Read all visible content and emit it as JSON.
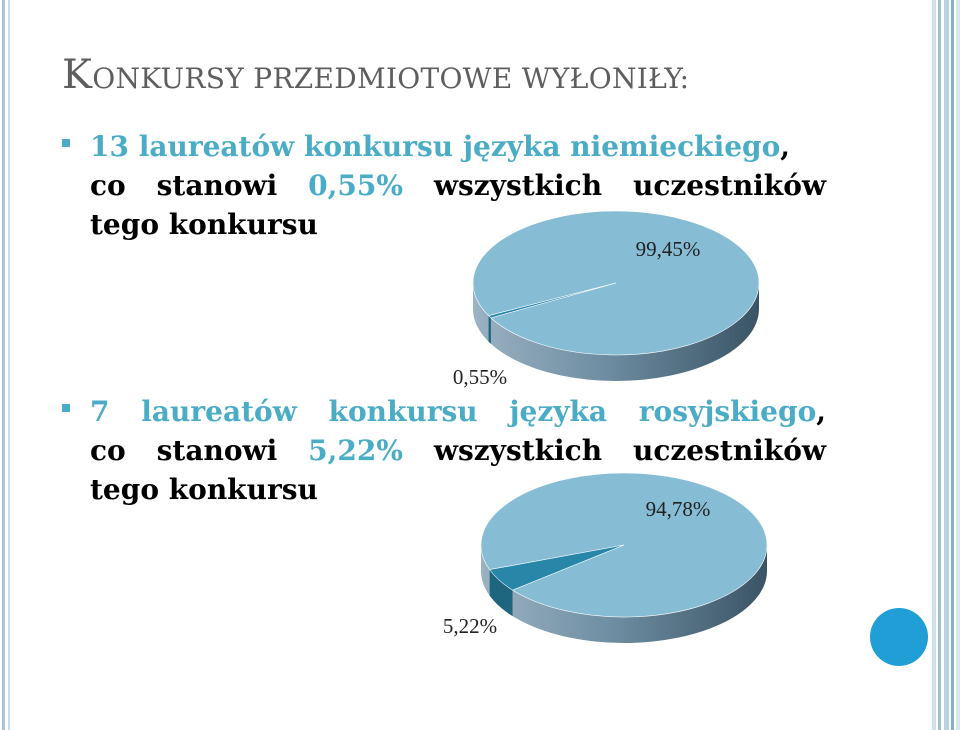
{
  "slide": {
    "title_cap": "K",
    "title_rest": "ONKURSY PRZEDMIOTOWE WYŁONIŁY:",
    "accent_color": "#4bacc6"
  },
  "bullets": [
    {
      "line1": "13 laureatów konkursu języka niemieckiego",
      "line1_suffix": ",",
      "line2_prefix": "co stanowi ",
      "line2_pct": "0,55%",
      "line2_suffix": " wszystkich uczestników",
      "line3": "tego konkursu"
    },
    {
      "line1": "7 laureatów konkursu języka rosyjskiego",
      "line1_suffix": ",",
      "line2_prefix": "co stanowi ",
      "line2_pct": "5,22%",
      "line2_suffix": " wszystkich uczestników",
      "line3": "tego konkursu"
    }
  ],
  "chart_data": [
    {
      "type": "pie",
      "categories": [
        "99,45%",
        "0,55%"
      ],
      "values": [
        99.45,
        0.55
      ],
      "colors": [
        "#87bdd4",
        "#2886a8"
      ],
      "title": "",
      "style": "3d"
    },
    {
      "type": "pie",
      "categories": [
        "94,78%",
        "5,22%"
      ],
      "values": [
        94.78,
        5.22
      ],
      "colors": [
        "#87bdd4",
        "#2886a8"
      ],
      "title": "",
      "style": "3d"
    }
  ]
}
